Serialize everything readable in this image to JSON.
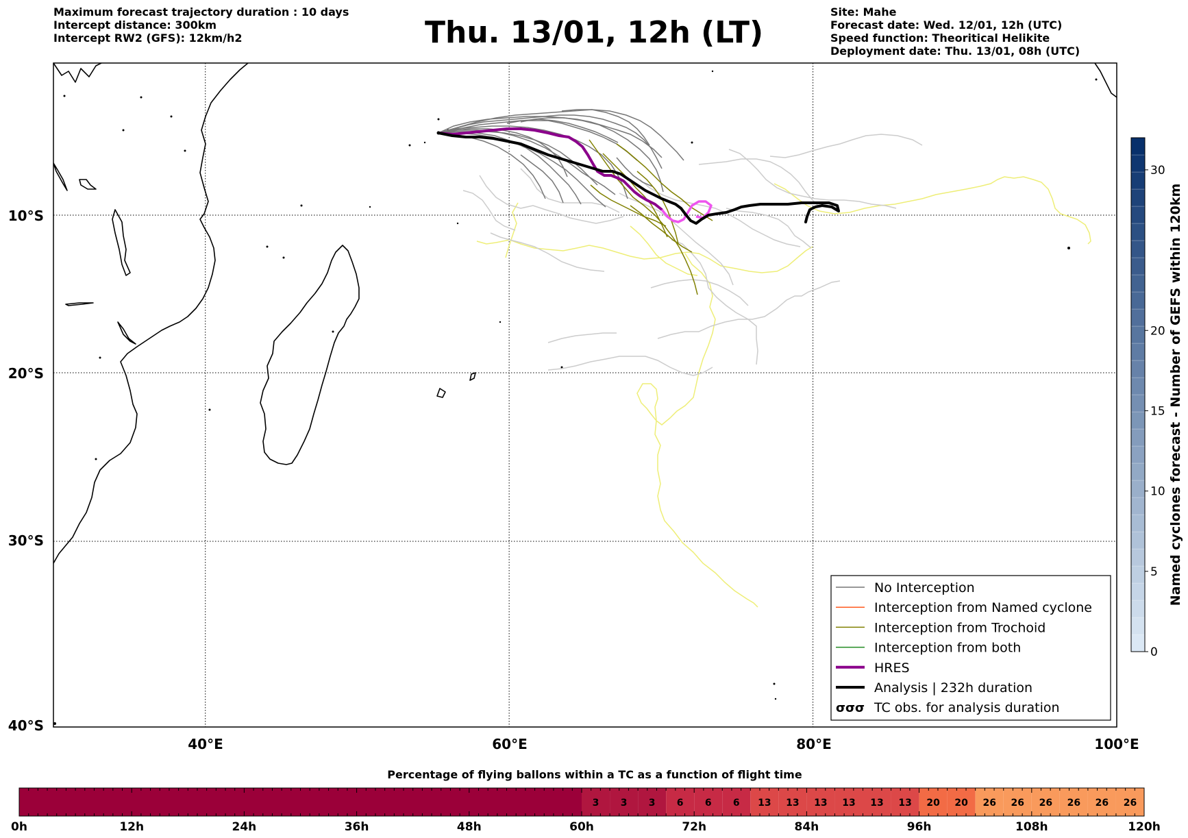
{
  "header": {
    "left_lines": [
      "Maximum forecast trajectory duration : 10 days",
      "Intercept distance: 300km",
      "Intercept RW2 (GFS):  12km/h2"
    ],
    "title": "Thu. 13/01, 12h (LT)",
    "right_lines": [
      "Site: Mahe",
      "Forecast date: Wed. 12/01, 12h (UTC)",
      "Speed function: Theoritical Helikite",
      "Deployment date: Thu. 13/01, 08h (UTC)"
    ]
  },
  "map": {
    "lon_range": [
      30,
      100
    ],
    "lat_range": [
      -40,
      0
    ],
    "lon_ticks": [
      {
        "value": 40,
        "label": "40°E"
      },
      {
        "value": 60,
        "label": "60°E"
      },
      {
        "value": 80,
        "label": "80°E"
      },
      {
        "value": 100,
        "label": "100°E"
      }
    ],
    "lat_ticks": [
      {
        "value": -10,
        "label": "10°S"
      },
      {
        "value": -20,
        "label": "20°S"
      },
      {
        "value": -30,
        "label": "30°S"
      },
      {
        "value": -40,
        "label": "40°S"
      }
    ],
    "grid": true,
    "site": {
      "name": "Mahe",
      "lon": 55.4,
      "lat": -4.6
    },
    "colors": {
      "no_interception": "#777777",
      "light_members": "#cccccc",
      "named_cyclone": "#ff5a1f",
      "trochoid": "#808000",
      "both": "#228b22",
      "hres": "#8b008b",
      "hres_loop": "#ee55ee",
      "analysis": "#000000",
      "yellow": "#eeee77"
    }
  },
  "legend": {
    "items": [
      {
        "label": "No Interception",
        "color": "#777777",
        "width": 1.5,
        "glyph": "line"
      },
      {
        "label": "Interception from Named cyclone",
        "color": "#ff5a1f",
        "width": 1.5,
        "glyph": "line"
      },
      {
        "label": "Interception from Trochoid",
        "color": "#808000",
        "width": 1.5,
        "glyph": "line"
      },
      {
        "label": "Interception from both",
        "color": "#228b22",
        "width": 1.5,
        "glyph": "line"
      },
      {
        "label": "HRES",
        "color": "#8b008b",
        "width": 4,
        "glyph": "line"
      },
      {
        "label": "Analysis | 232h duration",
        "color": "#000000",
        "width": 4,
        "glyph": "line"
      },
      {
        "label": "TC obs. for analysis duration",
        "color": "#000000",
        "width": 1,
        "glyph": "cyclone-symbols"
      }
    ]
  },
  "right_colorbar": {
    "label": "Named cyclones forecast - Number of GEFS within 120km",
    "min": 0,
    "max": 32,
    "ticks": [
      0,
      5,
      10,
      15,
      20,
      30
    ],
    "color_low": "#dbe8f5",
    "color_high": "#08306b"
  },
  "bottom_colorbar": {
    "title": "Percentage of flying ballons within a TC as a function of flight time",
    "ticks": [
      "0h",
      "12h",
      "24h",
      "36h",
      "48h",
      "60h",
      "72h",
      "84h",
      "96h",
      "108h",
      "120h"
    ],
    "cells": [
      {
        "hour_start": 0,
        "hour_end": 60,
        "value": "",
        "color": "#9b0039"
      },
      {
        "hour_start": 60,
        "hour_end": 63,
        "value": "3",
        "color": "#b0163f"
      },
      {
        "hour_start": 63,
        "hour_end": 66,
        "value": "3",
        "color": "#b0163f"
      },
      {
        "hour_start": 66,
        "hour_end": 69,
        "value": "3",
        "color": "#b0163f"
      },
      {
        "hour_start": 69,
        "hour_end": 72,
        "value": "6",
        "color": "#c72a45"
      },
      {
        "hour_start": 72,
        "hour_end": 75,
        "value": "6",
        "color": "#c72a45"
      },
      {
        "hour_start": 75,
        "hour_end": 78,
        "value": "6",
        "color": "#c72a45"
      },
      {
        "hour_start": 78,
        "hour_end": 81,
        "value": "13",
        "color": "#dc4848"
      },
      {
        "hour_start": 81,
        "hour_end": 84,
        "value": "13",
        "color": "#dc4848"
      },
      {
        "hour_start": 84,
        "hour_end": 87,
        "value": "13",
        "color": "#dc4848"
      },
      {
        "hour_start": 87,
        "hour_end": 90,
        "value": "13",
        "color": "#dc4848"
      },
      {
        "hour_start": 90,
        "hour_end": 93,
        "value": "13",
        "color": "#dc4848"
      },
      {
        "hour_start": 93,
        "hour_end": 96,
        "value": "13",
        "color": "#dc4848"
      },
      {
        "hour_start": 96,
        "hour_end": 99,
        "value": "20",
        "color": "#f26b45"
      },
      {
        "hour_start": 99,
        "hour_end": 102,
        "value": "20",
        "color": "#f26b45"
      },
      {
        "hour_start": 102,
        "hour_end": 105,
        "value": "26",
        "color": "#f99a5c"
      },
      {
        "hour_start": 105,
        "hour_end": 108,
        "value": "26",
        "color": "#f99a5c"
      },
      {
        "hour_start": 108,
        "hour_end": 111,
        "value": "26",
        "color": "#f99a5c"
      },
      {
        "hour_start": 111,
        "hour_end": 114,
        "value": "26",
        "color": "#f99a5c"
      },
      {
        "hour_start": 114,
        "hour_end": 117,
        "value": "26",
        "color": "#f99a5c"
      },
      {
        "hour_start": 117,
        "hour_end": 120,
        "value": "26",
        "color": "#f99a5c"
      }
    ]
  }
}
